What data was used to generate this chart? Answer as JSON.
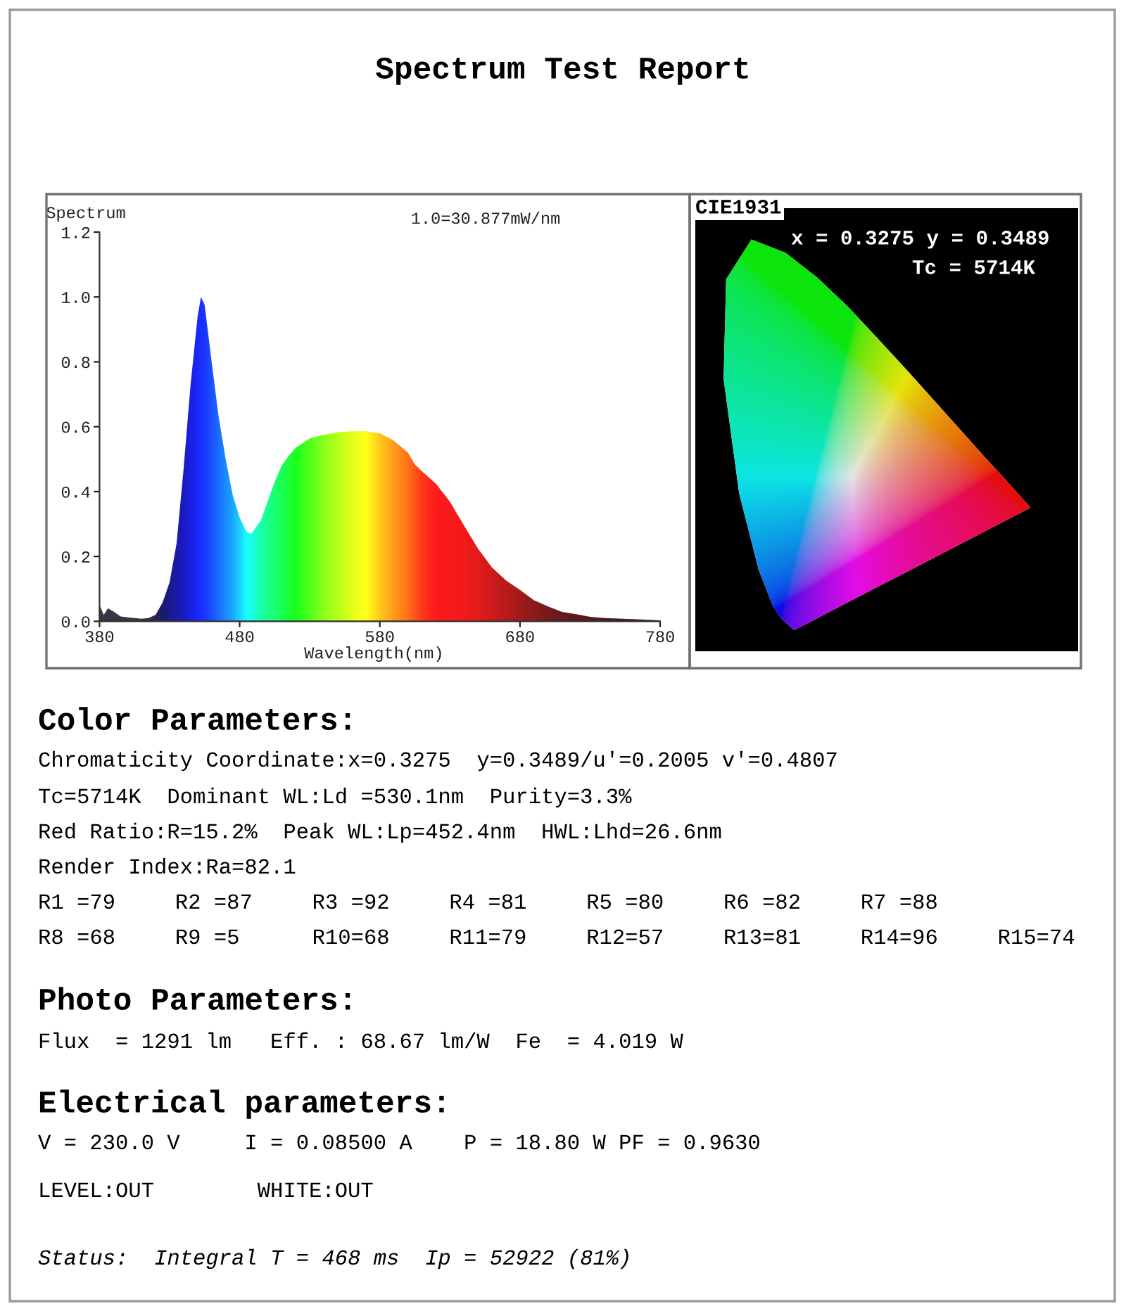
{
  "chart_data": {
    "type": "area",
    "title": "Spectrum Test Report",
    "xlabel": "Wavelength(nm)",
    "ylabel": "Spectrum",
    "x": [
      380,
      383,
      386,
      390,
      395,
      400,
      405,
      410,
      415,
      420,
      425,
      430,
      435,
      440,
      445,
      450,
      452.4,
      455,
      460,
      465,
      470,
      475,
      480,
      485,
      488,
      490,
      495,
      500,
      505,
      510,
      515,
      520,
      530,
      540,
      550,
      560,
      570,
      580,
      590,
      600,
      605,
      610,
      620,
      630,
      640,
      650,
      660,
      670,
      680,
      690,
      700,
      710,
      720,
      730,
      740,
      760,
      780
    ],
    "series": [
      {
        "values": [
          0.05,
          0.02,
          0.04,
          0.03,
          0.015,
          0.012,
          0.01,
          0.008,
          0.01,
          0.02,
          0.058,
          0.12,
          0.24,
          0.47,
          0.73,
          0.94,
          1.0,
          0.976,
          0.8,
          0.63,
          0.5,
          0.39,
          0.32,
          0.275,
          0.27,
          0.28,
          0.31,
          0.37,
          0.43,
          0.48,
          0.51,
          0.535,
          0.564,
          0.575,
          0.583,
          0.586,
          0.586,
          0.58,
          0.557,
          0.52,
          0.484,
          0.463,
          0.424,
          0.369,
          0.296,
          0.224,
          0.166,
          0.126,
          0.097,
          0.065,
          0.046,
          0.029,
          0.022,
          0.014,
          0.01,
          0.007,
          0.003
        ],
        "colors": [
          "#202030",
          "#202030",
          "#202030",
          "#202030",
          "#202030",
          "#202030",
          "#202030",
          "#202030",
          "#181838",
          "#101040",
          "#000060",
          "#000080",
          "#0000a0",
          "#0000c0",
          "#0008e0",
          "#0010ff",
          "#0018ff",
          "#0020ff",
          "#0040ff",
          "#0060ff",
          "#0080ff",
          "#00a0ff",
          "#00d0ff",
          "#00ffff",
          "#00ffe8",
          "#00ffd0",
          "#00ffa0",
          "#00ff80",
          "#00ff60",
          "#00ff40",
          "#00ff20",
          "#00ff00",
          "#40ff00",
          "#80ff00",
          "#b0ff00",
          "#e0ff00",
          "#ffff00",
          "#ffc000",
          "#ff9000",
          "#ff6000",
          "#ff4000",
          "#ff2000",
          "#ff0000",
          "#f80000",
          "#f00000",
          "#e00000",
          "#c80000",
          "#b00000",
          "#980000",
          "#800000",
          "#680000",
          "#580000",
          "#480000",
          "#400000",
          "#380000",
          "#300000",
          "#280000"
        ]
      }
    ],
    "xlim": [
      380,
      780
    ],
    "xticks": [
      380,
      480,
      580,
      680,
      780
    ],
    "ylim": [
      0,
      1.2
    ],
    "yticks": [
      {
        "value": 0,
        "label": "0.0"
      },
      0.2,
      0.4,
      0.6,
      0.8,
      {
        "value": 1.0,
        "label": "1.0"
      },
      1.2
    ],
    "annotations": [
      "1.0=30.877mW/nm",
      "CIE1931",
      "x = 0.3275 y = 0.3489",
      "Tc = 5714K",
      "Color Parameters:",
      "Chromaticity Coordinate:x=0.3275  y=0.3489/u'=0.2005 v'=0.4807",
      "Tc=5714K  Dominant WL:Ld =530.1nm  Purity=3.3%",
      "Red Ratio:R=15.2%  Peak WL:Lp=452.4nm  HWL:Lhd=26.6nm",
      "Render Index:Ra=82.1",
      "R1 =79",
      "R2 =87",
      "R3 =92",
      "R4 =81",
      "R5 =80",
      "R6 =82",
      "R7 =88",
      "R8 =68",
      "R9 =5",
      "R10=68",
      "R11=79",
      "R12=57",
      "R13=81",
      "R14=96",
      "R15=74",
      "Photo Parameters:",
      "Flux  = 1291 lm   Eff. : 68.67 lm/W  Fe  = 4.019 W",
      "Electrical parameters:",
      "V = 230.0 V     I = 0.08500 A    P = 18.80 W PF = 0.9630",
      "LEVEL:OUT        WHITE:OUT",
      "Status:  Integral T = 468 ms  Ip = 52922 (81%)"
    ]
  }
}
